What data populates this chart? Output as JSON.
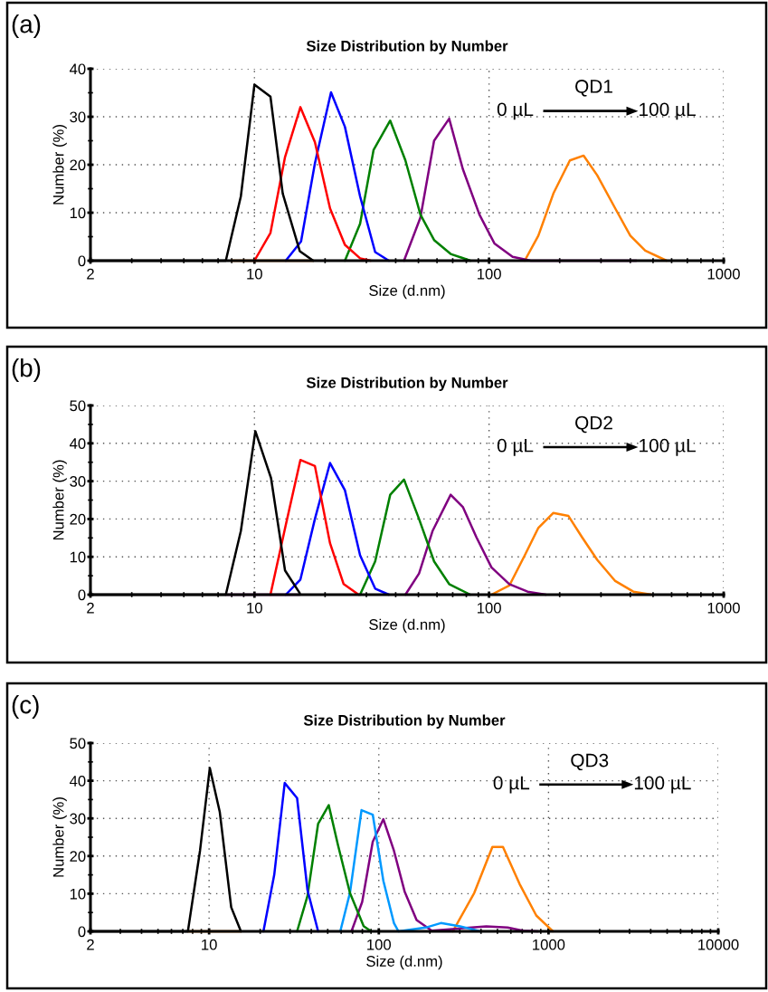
{
  "chart_data": [
    {
      "type": "line",
      "title": "Size Distribution by Number",
      "xlabel": "Size (d.nm)",
      "ylabel": "Number (%)",
      "log": "x",
      "grid": true,
      "legend": false,
      "xlim": [
        2,
        1000
      ],
      "xticks": [
        2,
        10,
        100,
        1000
      ],
      "ylim": [
        0,
        40
      ],
      "yticks": [
        0,
        10,
        20,
        30,
        40
      ],
      "annotations": [
        "(a)",
        "QD1",
        "0 µL",
        "100 µL"
      ],
      "series": [
        {
          "color": "#ff8000",
          "x": [
            8,
            17.8,
            100,
            141.9,
            162.2,
            188,
            221,
            253,
            289,
            345,
            400,
            463,
            571
          ],
          "values": [
            0,
            0,
            null,
            0,
            5.2,
            14,
            20.9,
            21.9,
            17.8,
            10.9,
            5.2,
            2.1,
            0
          ]
        },
        {
          "color": "#800080",
          "x": [
            43.4,
            51.0,
            58.3,
            67.6,
            77.3,
            91,
            105.4,
            126,
            150.6,
            424.6
          ],
          "values": [
            0,
            9.0,
            25,
            29.6,
            19.1,
            9.6,
            3.6,
            0.8,
            0,
            0
          ]
        },
        {
          "color": "#008000",
          "x": [
            24.3,
            28.2,
            32.2,
            37.9,
            44.0,
            51.0,
            58.3,
            68.6,
            83.2
          ],
          "values": [
            0,
            7.7,
            23.1,
            29.2,
            20.9,
            9.6,
            4.3,
            1.4,
            0
          ]
        },
        {
          "color": "#0000ff",
          "x": [
            13.6,
            15.8,
            18.1,
            21.2,
            24.3,
            28.2,
            32.7,
            37.4
          ],
          "values": [
            0,
            4,
            20.3,
            35.1,
            27.9,
            13.4,
            1.8,
            0
          ]
        },
        {
          "color": "#ff0000",
          "x": [
            10,
            11.7,
            13.5,
            15.7,
            18.1,
            21.0,
            24.3,
            28.2,
            31.3
          ],
          "values": [
            0,
            5.8,
            21.6,
            32,
            24.7,
            10.9,
            3.3,
            0.5,
            0
          ]
        },
        {
          "color": "#000000",
          "x": [
            2,
            7.55,
            8.75,
            10,
            11.7,
            13.2,
            15.6,
            17.8
          ],
          "values": [
            0,
            0,
            13.4,
            36.7,
            34.2,
            14,
            2,
            0
          ]
        }
      ]
    },
    {
      "type": "line",
      "title": "Size Distribution by Number",
      "xlabel": "Size (d.nm)",
      "ylabel": "Number (%)",
      "log": "x",
      "grid": true,
      "legend": false,
      "xlim": [
        2,
        1000
      ],
      "xticks": [
        2,
        10,
        100,
        1000
      ],
      "ylim": [
        0,
        50
      ],
      "yticks": [
        0,
        10,
        20,
        30,
        40,
        50
      ],
      "annotations": [
        "(b)",
        "QD2",
        "0 µL",
        "100 µL"
      ],
      "series": [
        {
          "color": "#ff8000",
          "x": [
            102.4,
            122,
            142,
            162,
            188,
            218,
            249,
            289,
            345,
            412,
            492
          ],
          "values": [
            0,
            2.4,
            10.4,
            17.6,
            21.6,
            20.8,
            15.2,
            9.2,
            3.6,
            0.8,
            0
          ]
        },
        {
          "color": "#800080",
          "x": [
            7.55,
            15.6,
            30,
            44,
            50.3,
            57.4,
            68.6,
            77.3,
            88.3,
            102.4,
            122,
            146,
            174.6
          ],
          "values": [
            0,
            0,
            null,
            0,
            5.6,
            16.8,
            26.4,
            23.2,
            15.2,
            7.2,
            2.8,
            0.8,
            0
          ]
        },
        {
          "color": "#008000",
          "x": [
            28.2,
            32.7,
            37.9,
            43.4,
            50.3,
            58.3,
            67.6,
            83.2
          ],
          "values": [
            0,
            8.8,
            26.4,
            30.4,
            20,
            8.8,
            2.8,
            0
          ]
        },
        {
          "color": "#0000ff",
          "x": [
            13.6,
            15.7,
            18.1,
            21.0,
            24.3,
            28.2,
            32.7,
            37.4
          ],
          "values": [
            0,
            4,
            20,
            34.8,
            27.6,
            10.4,
            1.6,
            0
          ]
        },
        {
          "color": "#ff0000",
          "x": [
            11.7,
            13.6,
            15.7,
            18.1,
            21.0,
            24.0,
            27.8
          ],
          "values": [
            0,
            18.4,
            35.6,
            34,
            13.6,
            2.8,
            0
          ]
        },
        {
          "color": "#000000",
          "x": [
            2,
            7.55,
            8.75,
            10.09,
            11.77,
            13.5,
            15.6
          ],
          "values": [
            0,
            0,
            16.8,
            43.2,
            30.8,
            6.4,
            0.4
          ]
        }
      ]
    },
    {
      "type": "line",
      "title": "Size Distribution by Number",
      "xlabel": "Size (d.nm)",
      "ylabel": "Number (%)",
      "log": "x",
      "grid": true,
      "legend": false,
      "xlim": [
        2,
        10000
      ],
      "xticks": [
        2,
        10,
        100,
        1000,
        10000
      ],
      "ylim": [
        0,
        50
      ],
      "yticks": [
        0,
        10,
        20,
        30,
        40,
        50
      ],
      "annotations": [
        "(c)",
        "QD3",
        "0 µL",
        "100 µL"
      ],
      "series": [
        {
          "color": "#ff8000",
          "x": [
            7.5,
            15.4,
            100,
            273,
            365,
            467,
            539,
            675,
            847,
            1062
          ],
          "values": [
            0,
            0,
            null,
            0,
            10.2,
            22.4,
            22.4,
            12.6,
            4.2,
            0
          ]
        },
        {
          "color": "#800080",
          "x": [
            69,
            79.8,
            92.1,
            106.4,
            122.8,
            141.9,
            167,
            205,
            430,
            574,
            705,
            865
          ],
          "values": [
            0,
            7.8,
            23.8,
            29.8,
            21.4,
            10.6,
            3,
            0.2,
            1.3,
            1,
            0.2,
            0
          ]
        },
        {
          "color": "#0099ff",
          "x": [
            59.3,
            67.6,
            79.1,
            92.1,
            106.4,
            122.8,
            130.6,
            188.8,
            232,
            297,
            396
          ],
          "values": [
            0,
            10.2,
            32.2,
            31,
            13.4,
            2.2,
            0,
            1,
            2.2,
            1.4,
            0
          ]
        },
        {
          "color": "#008000",
          "x": [
            33,
            38,
            43.9,
            50.7,
            57.4,
            67.6,
            81.4,
            90.2
          ],
          "values": [
            0,
            9.4,
            28.6,
            33.5,
            23,
            10.2,
            1.4,
            0
          ]
        },
        {
          "color": "#0000ff",
          "x": [
            20.9,
            24.2,
            27.9,
            33,
            38,
            43.9
          ],
          "values": [
            0,
            15,
            39.4,
            35.4,
            11,
            0
          ]
        },
        {
          "color": "#000000",
          "x": [
            2,
            7.5,
            8.84,
            10.1,
            11.55,
            13.5,
            15.4
          ],
          "values": [
            0,
            0,
            21.4,
            43.4,
            31.8,
            6.4,
            0
          ]
        }
      ]
    }
  ]
}
